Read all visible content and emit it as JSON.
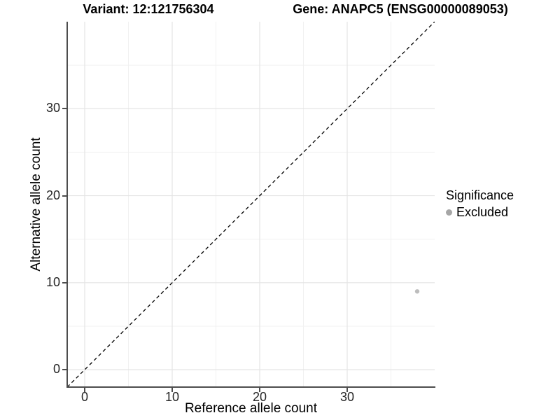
{
  "title_variant": "Variant: 12:121756304",
  "title_gene": "Gene: ANAPC5 (ENSG00000089053)",
  "legend": {
    "title": "Significance",
    "items": [
      {
        "label": "Excluded",
        "color": "#a6a6a6"
      }
    ]
  },
  "chart_data": {
    "type": "scatter",
    "title": "Variant: 12:121756304 — Gene: ANAPC5 (ENSG00000089053)",
    "xlabel": "Reference allele count",
    "ylabel": "Alternative allele count",
    "xlim": [
      -2,
      40
    ],
    "ylim": [
      -2,
      40
    ],
    "xticks": [
      0,
      10,
      20,
      30
    ],
    "yticks": [
      0,
      10,
      20,
      30
    ],
    "xticks_minor": [
      5,
      15,
      25,
      35
    ],
    "yticks_minor": [
      5,
      15,
      25,
      35
    ],
    "grid": true,
    "legend_position": "right",
    "series": [
      {
        "name": "Excluded",
        "color": "#bdbdbd",
        "point_radius": 3.2,
        "points": [
          {
            "x": 38,
            "y": 9
          }
        ]
      }
    ],
    "reference_line": {
      "style": "dashed",
      "equation": "y = x",
      "color": "#000000",
      "from": [
        -2,
        -2
      ],
      "to": [
        40,
        40
      ]
    }
  },
  "colors": {
    "grid_major": "#e4e4e4",
    "grid_minor": "#f1f1f1",
    "axis": "#4d4d4d",
    "tick_label": "#262626",
    "title": "#000000",
    "background": "#ffffff"
  }
}
